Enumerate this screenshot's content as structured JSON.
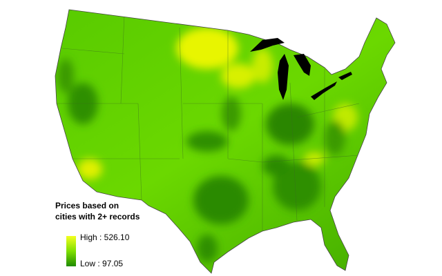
{
  "legend": {
    "title_lines": [
      "Prices based on",
      "cities with 2+ records"
    ],
    "high": "High : 526.10",
    "low": "Low : 97.05"
  }
}
